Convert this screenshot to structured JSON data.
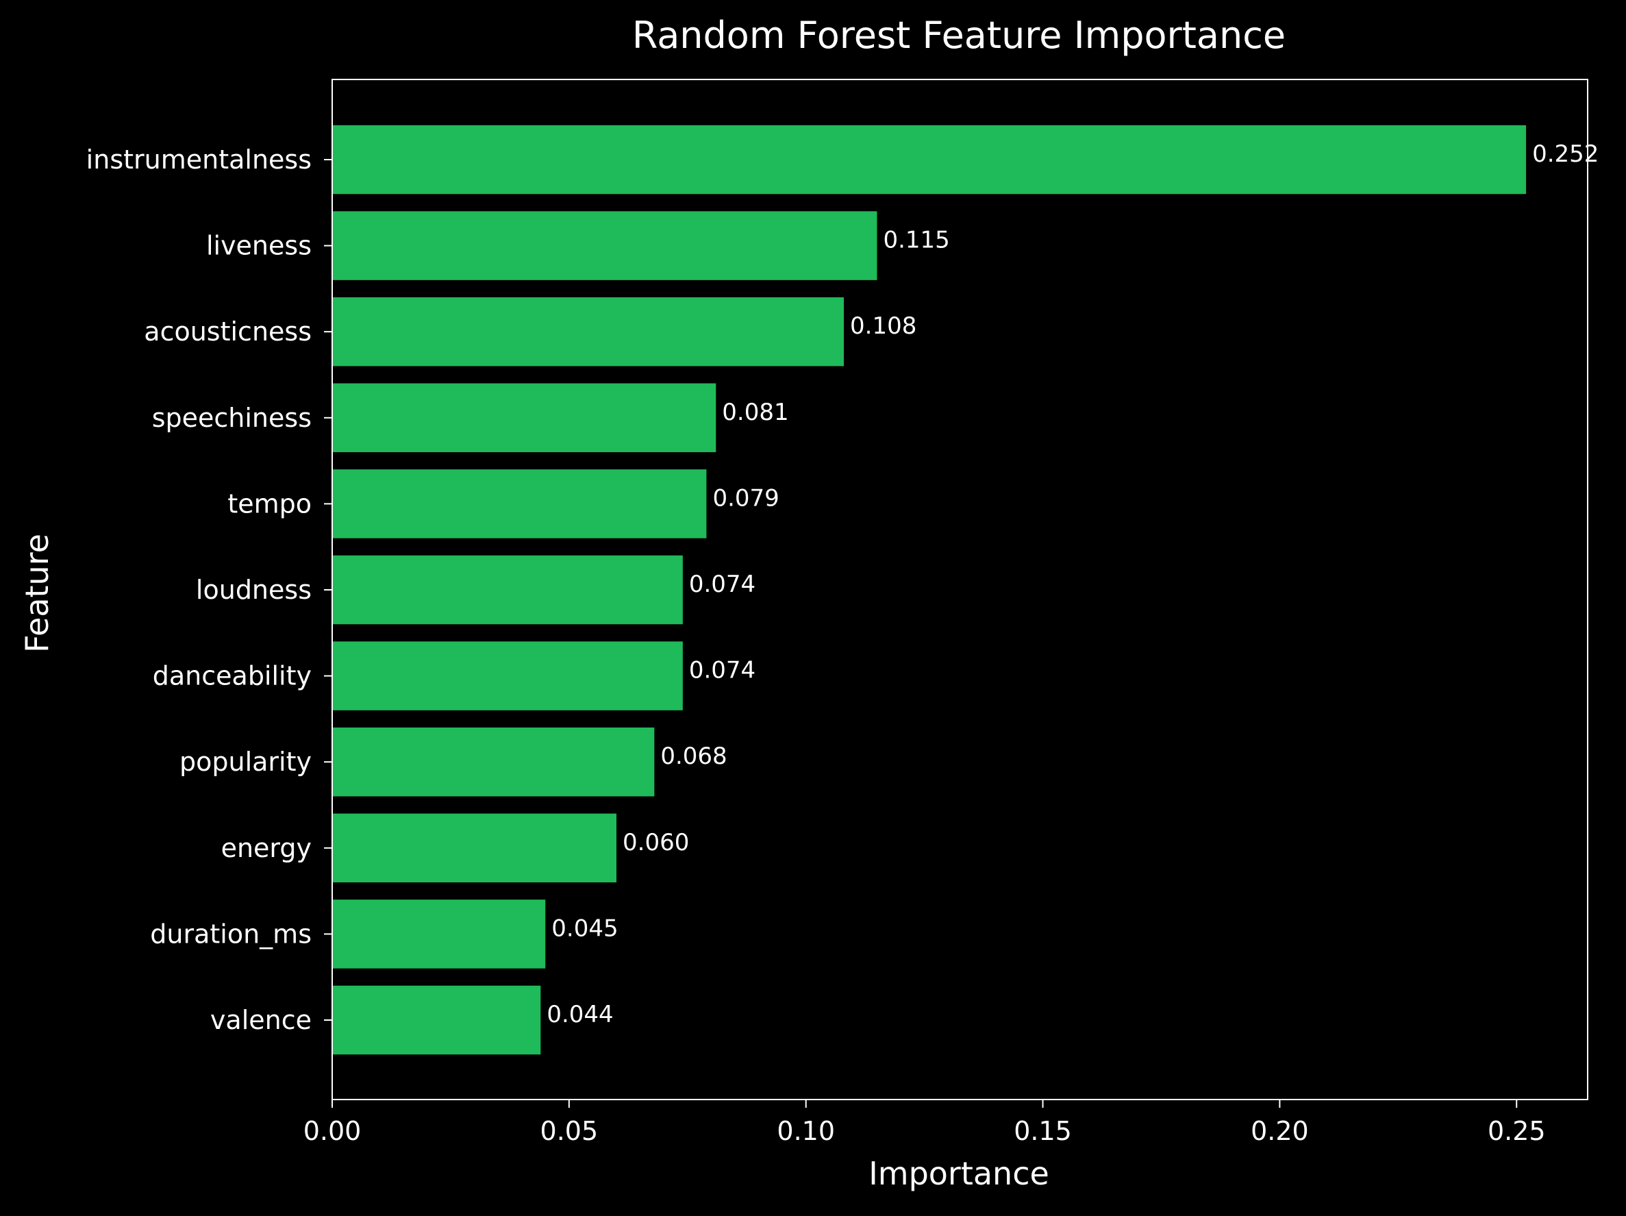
{
  "chart_data": {
    "type": "bar",
    "orientation": "horizontal",
    "title": "Random Forest Feature Importance",
    "xlabel": "Importance",
    "ylabel": "Feature",
    "categories": [
      "instrumentalness",
      "liveness",
      "acousticness",
      "speechiness",
      "tempo",
      "loudness",
      "danceability",
      "popularity",
      "energy",
      "duration_ms",
      "valence"
    ],
    "values": [
      0.252,
      0.115,
      0.108,
      0.081,
      0.079,
      0.074,
      0.074,
      0.068,
      0.06,
      0.045,
      0.044
    ],
    "value_labels": [
      "0.252",
      "0.115",
      "0.108",
      "0.081",
      "0.079",
      "0.074",
      "0.074",
      "0.068",
      "0.060",
      "0.045",
      "0.044"
    ],
    "xticks": [
      "0.00",
      "0.05",
      "0.10",
      "0.15",
      "0.20",
      "0.25"
    ],
    "xtick_values": [
      0,
      0.05,
      0.1,
      0.15,
      0.2,
      0.25
    ],
    "xlim": [
      0,
      0.265
    ],
    "grid": false,
    "legend": "none",
    "colors": {
      "background": "#000000",
      "bar": "#1fba59",
      "axes": "#ffffff",
      "text": "#ffffff"
    }
  }
}
